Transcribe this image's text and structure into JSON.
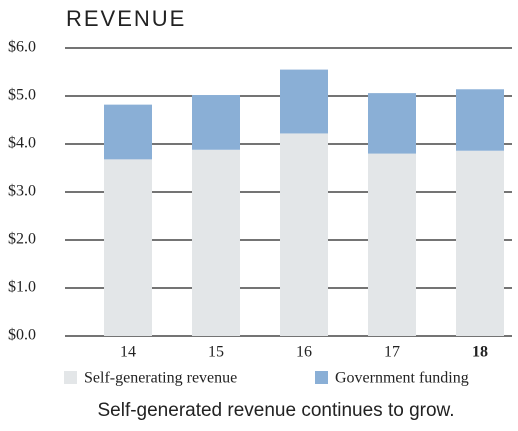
{
  "chart_data": {
    "type": "bar",
    "stacked": true,
    "title": "REVENUE",
    "caption": "Self-generated revenue continues to grow.",
    "categories": [
      "14",
      "15",
      "16",
      "17",
      "18"
    ],
    "series": [
      {
        "name": "Self-generating revenue",
        "color": "#e3e6e8",
        "values": [
          3.68,
          3.88,
          4.22,
          3.8,
          3.86
        ]
      },
      {
        "name": "Government funding",
        "color": "#8aafd6",
        "values": [
          1.14,
          1.14,
          1.33,
          1.26,
          1.28
        ]
      }
    ],
    "ylim": [
      0,
      6
    ],
    "yticks": [
      {
        "value": 0,
        "label": "$0.0"
      },
      {
        "value": 1,
        "label": "$1.0"
      },
      {
        "value": 2,
        "label": "$2.0"
      },
      {
        "value": 3,
        "label": "$3.0"
      },
      {
        "value": 4,
        "label": "$4.0"
      },
      {
        "value": 5,
        "label": "$5.0"
      },
      {
        "value": 6,
        "label": "$6.0"
      }
    ],
    "grid": true
  }
}
